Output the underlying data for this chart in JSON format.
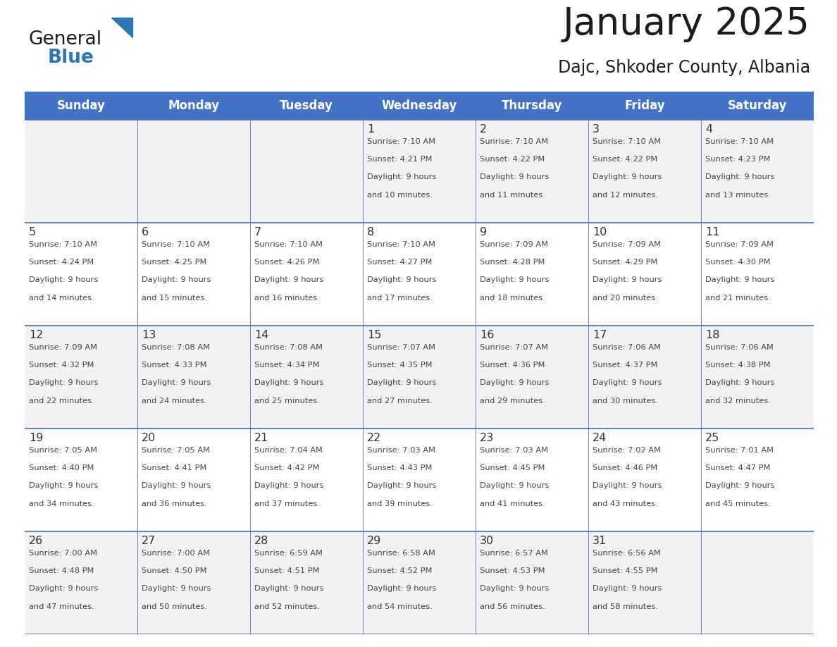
{
  "title": "January 2025",
  "subtitle": "Dajc, Shkoder County, Albania",
  "header_bg": "#4472C4",
  "header_text_color": "#FFFFFF",
  "cell_bg_odd": "#F2F2F2",
  "cell_bg_even": "#FFFFFF",
  "border_color": "#4472C4",
  "text_color": "#444444",
  "days_of_week": [
    "Sunday",
    "Monday",
    "Tuesday",
    "Wednesday",
    "Thursday",
    "Friday",
    "Saturday"
  ],
  "calendar": [
    [
      {
        "day": "",
        "sunrise": "",
        "sunset": "",
        "daylight": ""
      },
      {
        "day": "",
        "sunrise": "",
        "sunset": "",
        "daylight": ""
      },
      {
        "day": "",
        "sunrise": "",
        "sunset": "",
        "daylight": ""
      },
      {
        "day": "1",
        "sunrise": "7:10 AM",
        "sunset": "4:21 PM",
        "daylight": "9 hours\nand 10 minutes."
      },
      {
        "day": "2",
        "sunrise": "7:10 AM",
        "sunset": "4:22 PM",
        "daylight": "9 hours\nand 11 minutes."
      },
      {
        "day": "3",
        "sunrise": "7:10 AM",
        "sunset": "4:22 PM",
        "daylight": "9 hours\nand 12 minutes."
      },
      {
        "day": "4",
        "sunrise": "7:10 AM",
        "sunset": "4:23 PM",
        "daylight": "9 hours\nand 13 minutes."
      }
    ],
    [
      {
        "day": "5",
        "sunrise": "7:10 AM",
        "sunset": "4:24 PM",
        "daylight": "9 hours\nand 14 minutes."
      },
      {
        "day": "6",
        "sunrise": "7:10 AM",
        "sunset": "4:25 PM",
        "daylight": "9 hours\nand 15 minutes."
      },
      {
        "day": "7",
        "sunrise": "7:10 AM",
        "sunset": "4:26 PM",
        "daylight": "9 hours\nand 16 minutes."
      },
      {
        "day": "8",
        "sunrise": "7:10 AM",
        "sunset": "4:27 PM",
        "daylight": "9 hours\nand 17 minutes."
      },
      {
        "day": "9",
        "sunrise": "7:09 AM",
        "sunset": "4:28 PM",
        "daylight": "9 hours\nand 18 minutes."
      },
      {
        "day": "10",
        "sunrise": "7:09 AM",
        "sunset": "4:29 PM",
        "daylight": "9 hours\nand 20 minutes."
      },
      {
        "day": "11",
        "sunrise": "7:09 AM",
        "sunset": "4:30 PM",
        "daylight": "9 hours\nand 21 minutes."
      }
    ],
    [
      {
        "day": "12",
        "sunrise": "7:09 AM",
        "sunset": "4:32 PM",
        "daylight": "9 hours\nand 22 minutes."
      },
      {
        "day": "13",
        "sunrise": "7:08 AM",
        "sunset": "4:33 PM",
        "daylight": "9 hours\nand 24 minutes."
      },
      {
        "day": "14",
        "sunrise": "7:08 AM",
        "sunset": "4:34 PM",
        "daylight": "9 hours\nand 25 minutes."
      },
      {
        "day": "15",
        "sunrise": "7:07 AM",
        "sunset": "4:35 PM",
        "daylight": "9 hours\nand 27 minutes."
      },
      {
        "day": "16",
        "sunrise": "7:07 AM",
        "sunset": "4:36 PM",
        "daylight": "9 hours\nand 29 minutes."
      },
      {
        "day": "17",
        "sunrise": "7:06 AM",
        "sunset": "4:37 PM",
        "daylight": "9 hours\nand 30 minutes."
      },
      {
        "day": "18",
        "sunrise": "7:06 AM",
        "sunset": "4:38 PM",
        "daylight": "9 hours\nand 32 minutes."
      }
    ],
    [
      {
        "day": "19",
        "sunrise": "7:05 AM",
        "sunset": "4:40 PM",
        "daylight": "9 hours\nand 34 minutes."
      },
      {
        "day": "20",
        "sunrise": "7:05 AM",
        "sunset": "4:41 PM",
        "daylight": "9 hours\nand 36 minutes."
      },
      {
        "day": "21",
        "sunrise": "7:04 AM",
        "sunset": "4:42 PM",
        "daylight": "9 hours\nand 37 minutes."
      },
      {
        "day": "22",
        "sunrise": "7:03 AM",
        "sunset": "4:43 PM",
        "daylight": "9 hours\nand 39 minutes."
      },
      {
        "day": "23",
        "sunrise": "7:03 AM",
        "sunset": "4:45 PM",
        "daylight": "9 hours\nand 41 minutes."
      },
      {
        "day": "24",
        "sunrise": "7:02 AM",
        "sunset": "4:46 PM",
        "daylight": "9 hours\nand 43 minutes."
      },
      {
        "day": "25",
        "sunrise": "7:01 AM",
        "sunset": "4:47 PM",
        "daylight": "9 hours\nand 45 minutes."
      }
    ],
    [
      {
        "day": "26",
        "sunrise": "7:00 AM",
        "sunset": "4:48 PM",
        "daylight": "9 hours\nand 47 minutes."
      },
      {
        "day": "27",
        "sunrise": "7:00 AM",
        "sunset": "4:50 PM",
        "daylight": "9 hours\nand 50 minutes."
      },
      {
        "day": "28",
        "sunrise": "6:59 AM",
        "sunset": "4:51 PM",
        "daylight": "9 hours\nand 52 minutes."
      },
      {
        "day": "29",
        "sunrise": "6:58 AM",
        "sunset": "4:52 PM",
        "daylight": "9 hours\nand 54 minutes."
      },
      {
        "day": "30",
        "sunrise": "6:57 AM",
        "sunset": "4:53 PM",
        "daylight": "9 hours\nand 56 minutes."
      },
      {
        "day": "31",
        "sunrise": "6:56 AM",
        "sunset": "4:55 PM",
        "daylight": "9 hours\nand 58 minutes."
      },
      {
        "day": "",
        "sunrise": "",
        "sunset": "",
        "daylight": ""
      }
    ]
  ]
}
